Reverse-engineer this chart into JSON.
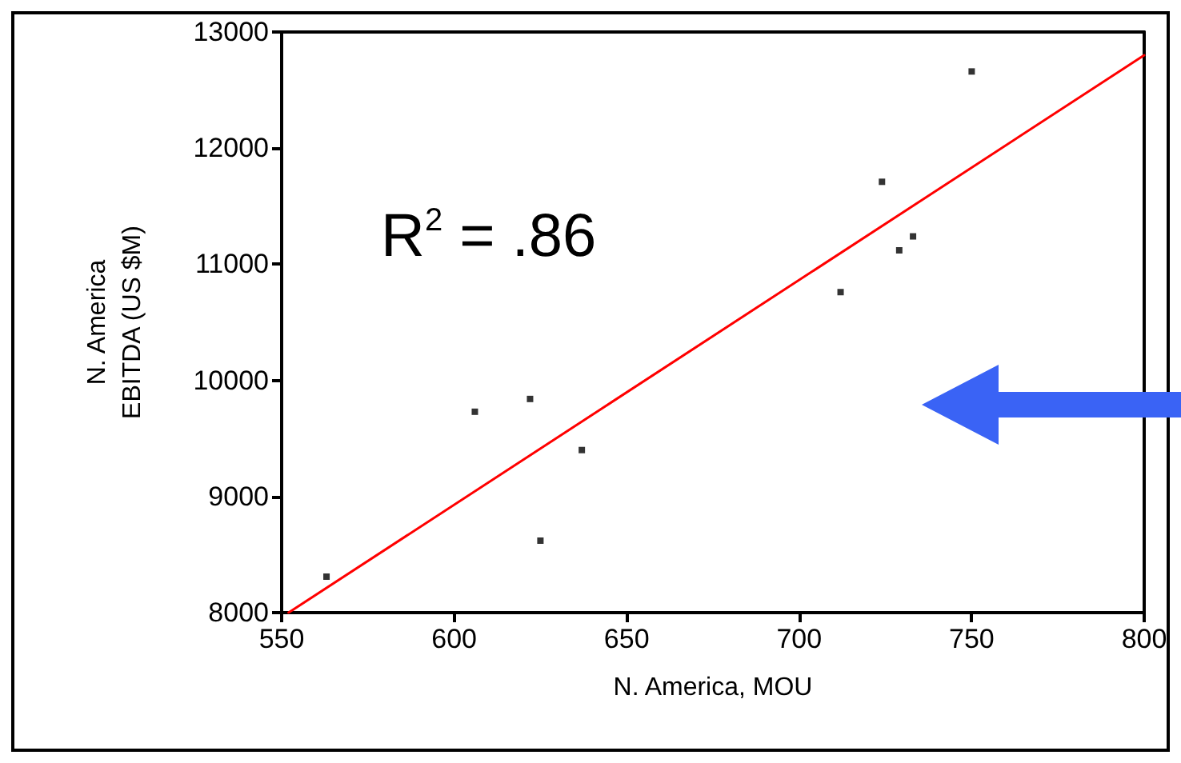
{
  "chart_data": {
    "type": "scatter",
    "xlabel": "N. America, MOU",
    "ylabel": "N. America\nEBITDA (US $M)",
    "annotations": [
      "R$^{2}$ = .86"
    ],
    "marker": "square",
    "grid": false,
    "xlim": [
      550,
      800
    ],
    "xticks": [
      550,
      600,
      650,
      700,
      750,
      800
    ],
    "ylim": [
      8000,
      13000
    ],
    "yticks": [
      8000,
      9000,
      10000,
      11000,
      12000,
      13000
    ],
    "series": [
      {
        "color": "#000000",
        "x": [
          563,
          606,
          622,
          625,
          637,
          712,
          724,
          729,
          733,
          750
        ],
        "values": [
          8310,
          9730,
          9840,
          8620,
          9400,
          10760,
          11710,
          11120,
          11240,
          12660
        ]
      },
      {
        "type": "line",
        "color": "#ff0000",
        "marker": "none",
        "x": [
          552,
          800
        ],
        "values": [
          8000,
          12800
        ]
      }
    ]
  }
}
